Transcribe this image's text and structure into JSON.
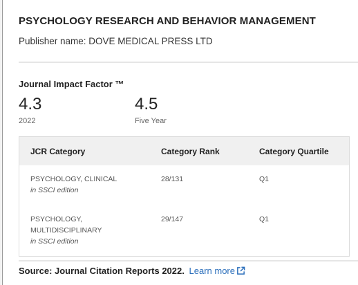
{
  "journal": {
    "title": "PSYCHOLOGY RESEARCH AND BEHAVIOR MANAGEMENT",
    "publisher": "Publisher name: DOVE MEDICAL PRESS LTD"
  },
  "impact_factor": {
    "heading": "Journal Impact Factor ™",
    "metrics": [
      {
        "value": "4.3",
        "label": "2022"
      },
      {
        "value": "4.5",
        "label": "Five Year"
      }
    ]
  },
  "jcr_table": {
    "headers": [
      "JCR Category",
      "Category Rank",
      "Category Quartile"
    ],
    "rows": [
      {
        "category": "PSYCHOLOGY, CLINICAL",
        "edition": "in SSCI edition",
        "rank": "28/131",
        "quartile": "Q1"
      },
      {
        "category_line1": "PSYCHOLOGY,",
        "category_line2": "MULTIDISCIPLINARY",
        "edition": "in SSCI edition",
        "rank": "29/147",
        "quartile": "Q1"
      }
    ]
  },
  "source": {
    "label": "Source: Journal Citation Reports",
    "year": "2022.",
    "link_text": "Learn more",
    "link_icon": "external-link-icon",
    "link_color": "#2a6ebb"
  }
}
